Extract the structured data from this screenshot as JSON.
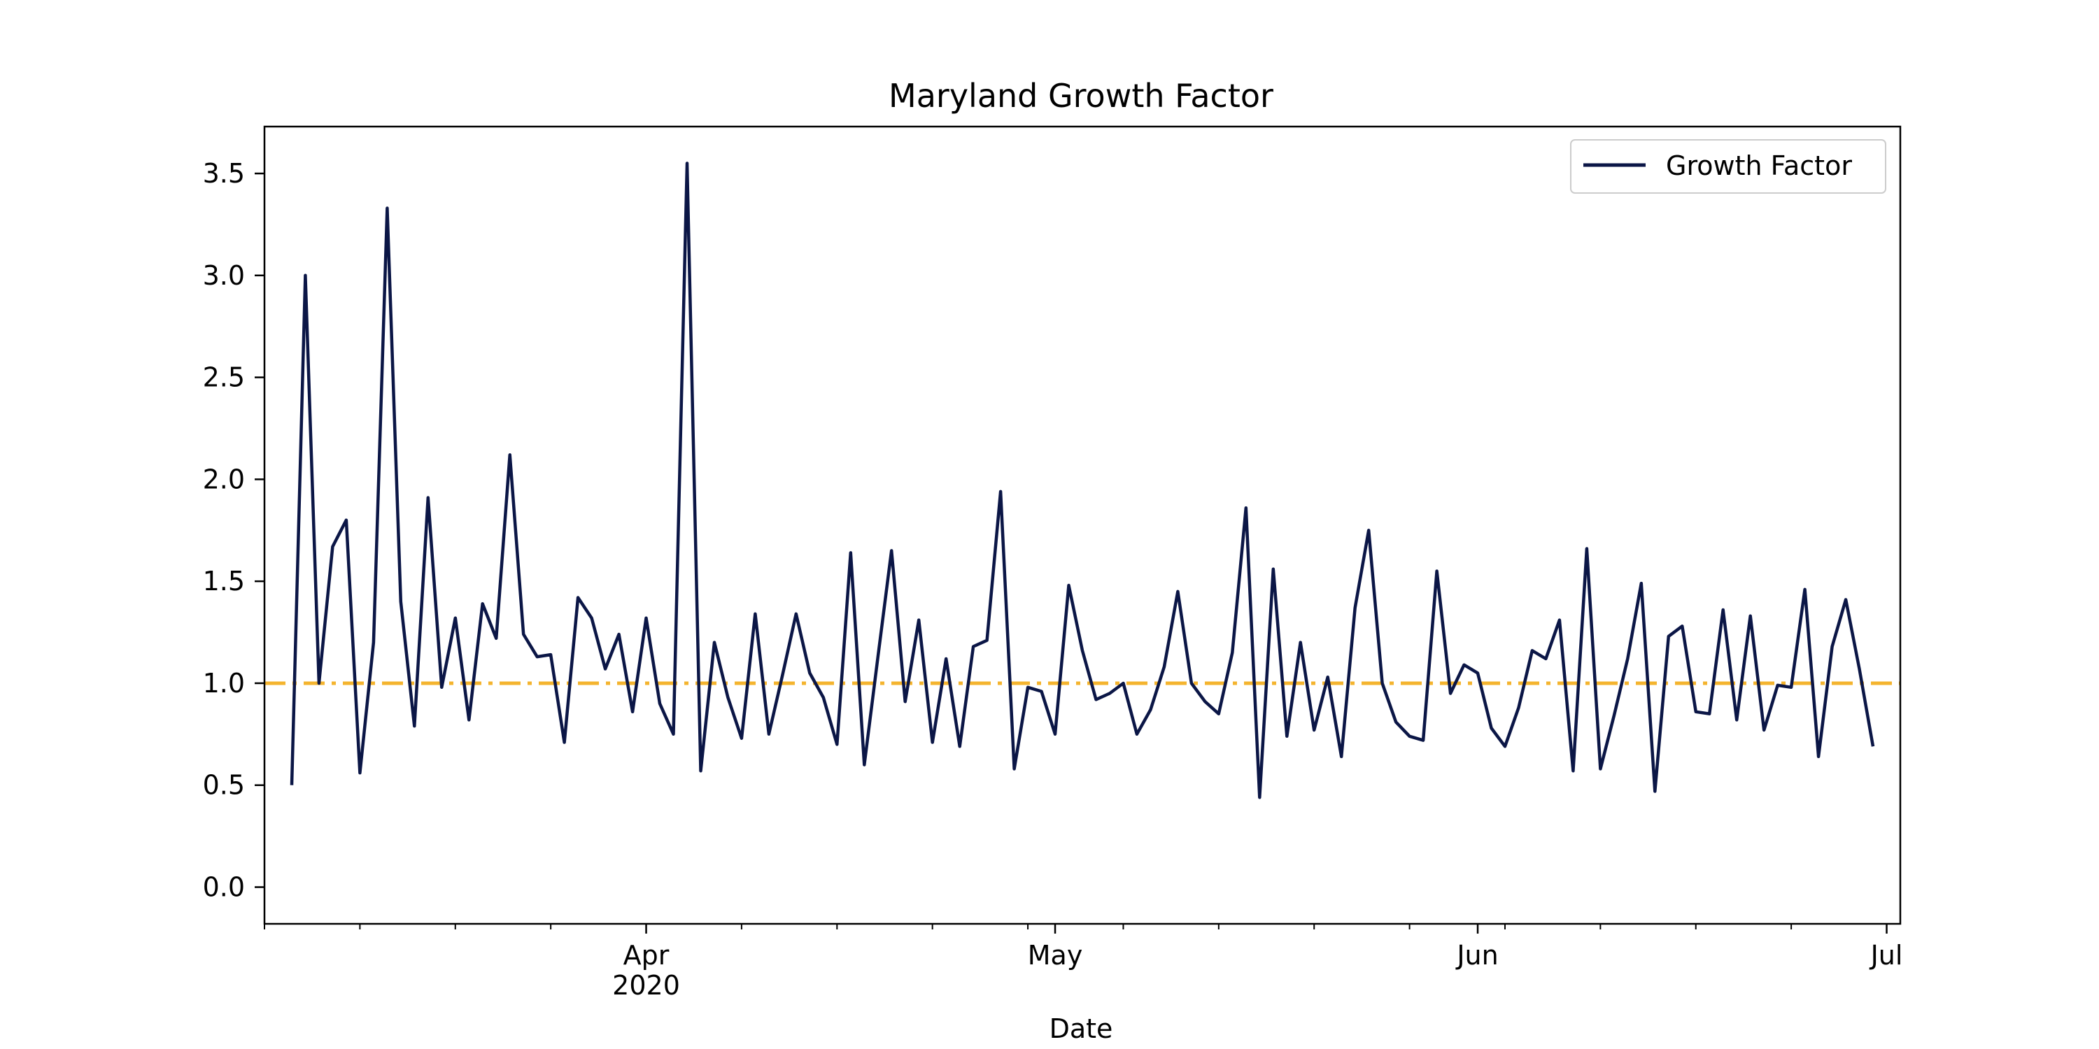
{
  "chart_data": {
    "type": "line",
    "title": "Maryland Growth Factor",
    "xlabel": "Date",
    "ylabel": "",
    "x_start": "2020-03-06",
    "x_range": [
      "2020-03-04",
      "2020-07-02"
    ],
    "ylim": [
      -0.18,
      3.73
    ],
    "yticks": [
      0.0,
      0.5,
      1.0,
      1.5,
      2.0,
      2.5,
      3.0,
      3.5
    ],
    "ytick_labels": [
      "0.0",
      "0.5",
      "1.0",
      "1.5",
      "2.0",
      "2.5",
      "3.0",
      "3.5"
    ],
    "xticks": [
      {
        "date": "2020-04-01",
        "label": "Apr",
        "sublabel": "2020"
      },
      {
        "date": "2020-05-01",
        "label": "May",
        "sublabel": ""
      },
      {
        "date": "2020-06-01",
        "label": "Jun",
        "sublabel": ""
      },
      {
        "date": "2020-07-01",
        "label": "Jul",
        "sublabel": ""
      }
    ],
    "legend": {
      "position": "upper right",
      "entries": [
        "Growth Factor"
      ]
    },
    "reference_line": {
      "y": 1.0,
      "style": "dash-dot",
      "color": "#f4b42f"
    },
    "series": [
      {
        "name": "Growth Factor",
        "color": "#0b1646",
        "values": [
          0.5,
          3.0,
          1.0,
          1.67,
          1.8,
          0.56,
          1.2,
          3.33,
          1.4,
          0.79,
          1.91,
          0.98,
          1.32,
          0.82,
          1.39,
          1.22,
          2.12,
          1.24,
          1.13,
          1.14,
          0.71,
          1.42,
          1.32,
          1.07,
          1.24,
          0.86,
          1.32,
          0.9,
          0.75,
          3.55,
          0.57,
          1.2,
          0.93,
          0.73,
          1.34,
          0.75,
          1.04,
          1.34,
          1.05,
          0.93,
          0.7,
          1.64,
          0.6,
          1.13,
          1.65,
          0.91,
          1.31,
          0.71,
          1.12,
          0.69,
          1.18,
          1.21,
          1.94,
          0.58,
          0.98,
          0.96,
          0.75,
          1.48,
          1.16,
          0.92,
          0.95,
          1.0,
          0.75,
          0.87,
          1.08,
          1.45,
          1.0,
          0.91,
          0.85,
          1.15,
          1.86,
          0.44,
          1.56,
          0.74,
          1.2,
          0.77,
          1.03,
          0.64,
          1.37,
          1.75,
          1.0,
          0.81,
          0.74,
          0.72,
          1.55,
          0.95,
          1.09,
          1.05,
          0.78,
          0.69,
          0.88,
          1.16,
          1.12,
          1.31,
          0.57,
          1.66,
          0.58,
          0.84,
          1.12,
          1.49,
          0.47,
          1.23,
          1.28,
          0.86,
          0.85,
          1.36,
          0.82,
          1.33,
          0.77,
          0.99,
          0.98,
          1.46,
          0.64,
          1.18,
          1.41,
          1.07,
          0.69
        ]
      }
    ]
  }
}
